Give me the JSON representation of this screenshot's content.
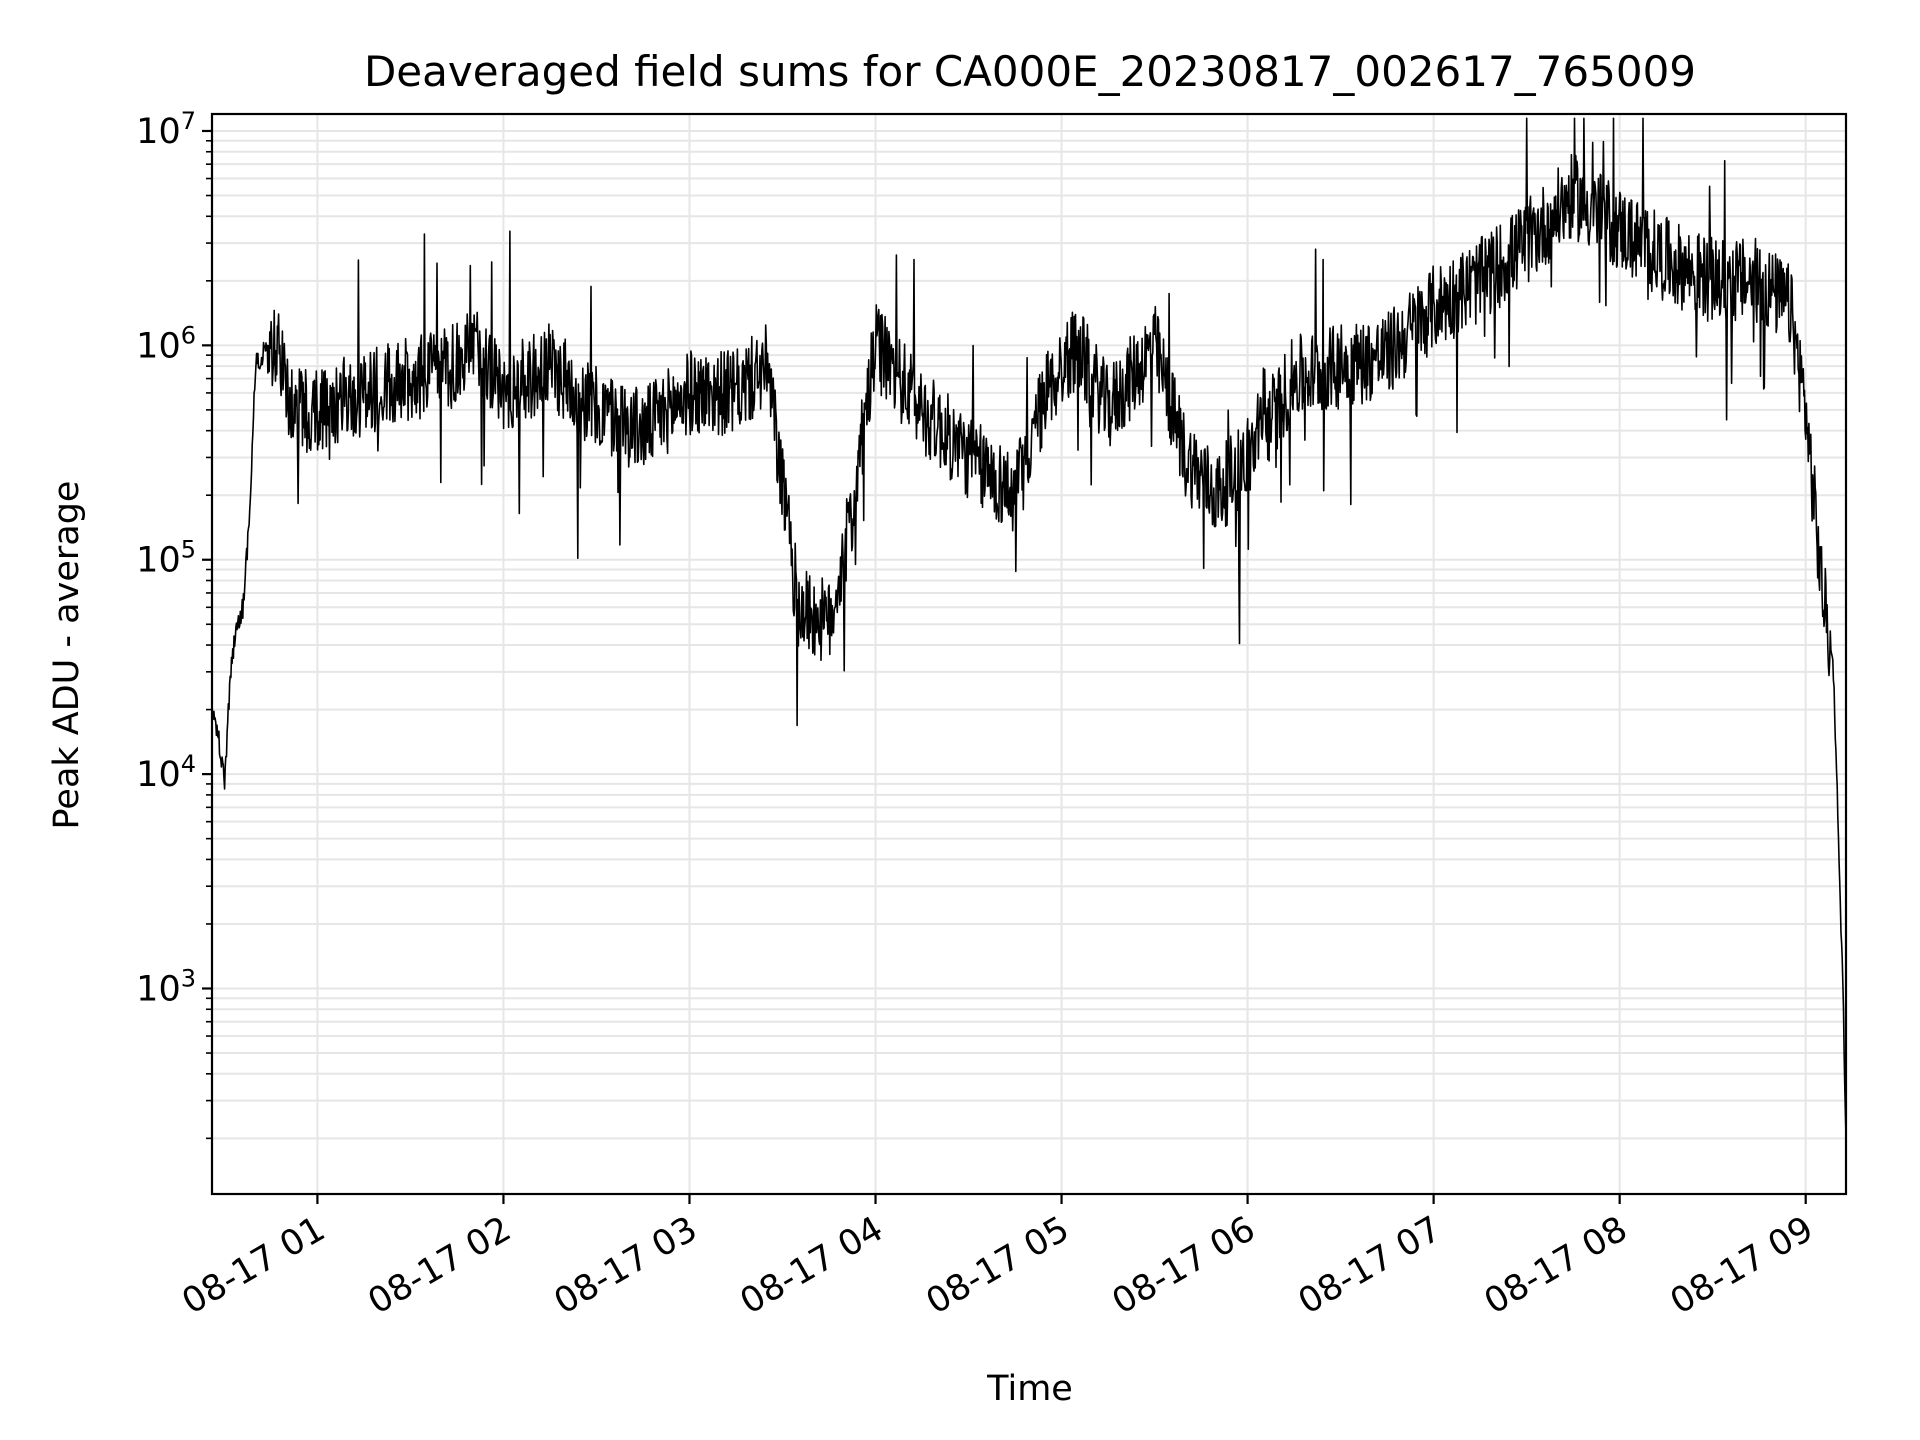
{
  "chart_data": {
    "type": "line",
    "title": "Deaveraged field sums for CA000E_20230817_002617_765009",
    "xlabel": "Time",
    "ylabel": "Peak ADU - average",
    "y_scale": "log",
    "grid": true,
    "xlim": [
      "2023-08-17 00:26",
      "2023-08-17 09:13"
    ],
    "ylim": [
      110,
      12000000
    ],
    "x_ticks": [
      "2023-08-17 01:00",
      "2023-08-17 02:00",
      "2023-08-17 03:00",
      "2023-08-17 04:00",
      "2023-08-17 05:00",
      "2023-08-17 06:00",
      "2023-08-17 07:00",
      "2023-08-17 08:00",
      "2023-08-17 09:00"
    ],
    "x_tick_labels": [
      "08-17 01",
      "08-17 02",
      "08-17 03",
      "08-17 04",
      "08-17 05",
      "08-17 06",
      "08-17 07",
      "08-17 08",
      "08-17 09"
    ],
    "y_ticks": [
      {
        "value": 1000,
        "base": "10",
        "exp": "3"
      },
      {
        "value": 10000,
        "base": "10",
        "exp": "4"
      },
      {
        "value": 100000,
        "base": "10",
        "exp": "5"
      },
      {
        "value": 1000000,
        "base": "10",
        "exp": "6"
      },
      {
        "value": 10000000,
        "base": "10",
        "exp": "7"
      }
    ],
    "line_color": "#000000",
    "grid_color": "#e6e6e6",
    "series": [
      {
        "x": [
          "2023-08-17 00:26",
          "2023-08-17 00:28",
          "2023-08-17 00:30",
          "2023-08-17 00:32",
          "2023-08-17 00:34",
          "2023-08-17 00:36",
          "2023-08-17 00:38",
          "2023-08-17 00:40",
          "2023-08-17 00:44",
          "2023-08-17 00:48",
          "2023-08-17 00:52",
          "2023-08-17 01:00",
          "2023-08-17 01:15",
          "2023-08-17 01:30",
          "2023-08-17 01:45",
          "2023-08-17 01:52",
          "2023-08-17 02:00",
          "2023-08-17 02:15",
          "2023-08-17 02:30",
          "2023-08-17 02:45",
          "2023-08-17 03:00",
          "2023-08-17 03:15",
          "2023-08-17 03:25",
          "2023-08-17 03:35",
          "2023-08-17 03:45",
          "2023-08-17 03:52",
          "2023-08-17 04:00",
          "2023-08-17 04:15",
          "2023-08-17 04:30",
          "2023-08-17 04:45",
          "2023-08-17 04:55",
          "2023-08-17 05:05",
          "2023-08-17 05:15",
          "2023-08-17 05:30",
          "2023-08-17 05:40",
          "2023-08-17 05:50",
          "2023-08-17 06:00",
          "2023-08-17 06:15",
          "2023-08-17 06:30",
          "2023-08-17 06:45",
          "2023-08-17 07:00",
          "2023-08-17 07:15",
          "2023-08-17 07:30",
          "2023-08-17 07:45",
          "2023-08-17 08:00",
          "2023-08-17 08:15",
          "2023-08-17 08:30",
          "2023-08-17 08:45",
          "2023-08-17 08:55",
          "2023-08-17 09:00",
          "2023-08-17 09:05",
          "2023-08-17 09:09",
          "2023-08-17 09:12",
          "2023-08-17 09:13"
        ],
        "y": [
          20000,
          15000,
          9000,
          30000,
          50000,
          60000,
          150000,
          800000,
          1000000,
          900000,
          500000,
          500000,
          600000,
          700000,
          800000,
          1000000,
          600000,
          800000,
          500000,
          400000,
          600000,
          600000,
          800000,
          60000,
          50000,
          150000,
          1000000,
          500000,
          300000,
          200000,
          600000,
          1000000,
          500000,
          1000000,
          300000,
          200000,
          300000,
          700000,
          800000,
          900000,
          1500000,
          2000000,
          3000000,
          5000000,
          3500000,
          2500000,
          2000000,
          2000000,
          1500000,
          500000,
          80000,
          30000,
          1000,
          200
        ]
      }
    ]
  }
}
